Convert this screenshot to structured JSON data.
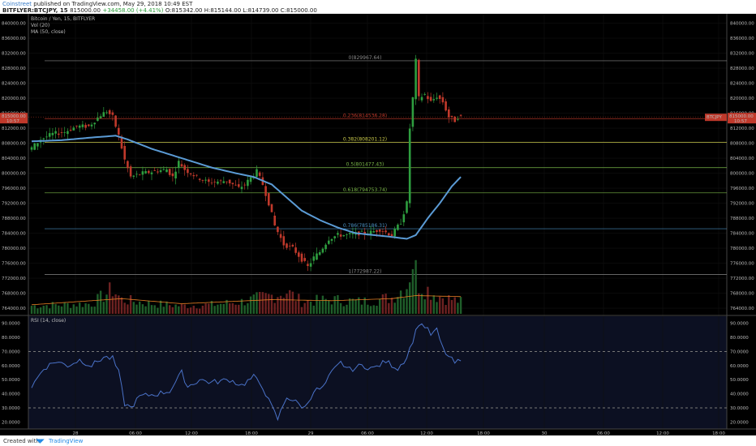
{
  "header": {
    "author": "Coinstreet",
    "published": " published on TradingView.com, May 29, 2018 10:49 EST",
    "symbol_line": "BITFLYER:BTCJPY, 15",
    "ohlc_o": "815000.00",
    "change": "+34458.00 (+4.41%)",
    "ohlc_rest": "O:815342.00  H:815144.00  L:814739.00  C:815000.00"
  },
  "footer": {
    "created_with": "Created with",
    "brand": "TradingView"
  },
  "colors": {
    "up": "#2e9e3f",
    "down": "#c0392b",
    "ma": "#5b9bd5",
    "rsi": "#4a72c8",
    "volma": "#e67e22",
    "fib_red": "#c0392b",
    "fib_green": "#7ab648",
    "fib_yellow": "#c9c94a",
    "fib_gray": "#888888",
    "fib_blue": "#4a90c2"
  },
  "chart_data": [
    {
      "type": "candlestick",
      "title": "Bitcoin / Yen, 15, BITFLYER",
      "indicators": [
        "Vol (20)",
        "MA (50, close)"
      ],
      "x_ticks": [
        "28",
        "06:00",
        "12:00",
        "18:00",
        "29",
        "06:00",
        "12:00",
        "18:00",
        "30",
        "06:00",
        "12:00",
        "18:00"
      ],
      "y_ticks": [
        "840000.00",
        "836000.00",
        "832000.00",
        "828000.00",
        "824000.00",
        "820000.00",
        "816000.00",
        "812000.00",
        "808000.00",
        "804000.00",
        "800000.00",
        "796000.00",
        "792000.00",
        "788000.00",
        "784000.00",
        "780000.00",
        "776000.00",
        "772000.00",
        "768000.00",
        "764000.00"
      ],
      "ylim": [
        762500,
        842500
      ],
      "price_label": "815000.00",
      "price_time": "10:57",
      "symbol_tag": "BTCJPY",
      "price_key": [
        [
          0,
          806000
        ],
        [
          4,
          809000
        ],
        [
          8,
          810500
        ],
        [
          12,
          811000
        ],
        [
          16,
          812500
        ],
        [
          20,
          812500
        ],
        [
          24,
          815500
        ],
        [
          26,
          816500
        ],
        [
          28,
          815000
        ],
        [
          30,
          810000
        ],
        [
          32,
          803500
        ],
        [
          34,
          799000
        ],
        [
          38,
          800000
        ],
        [
          42,
          800500
        ],
        [
          46,
          801000
        ],
        [
          48,
          799000
        ],
        [
          50,
          803000
        ],
        [
          52,
          801000
        ],
        [
          56,
          799000
        ],
        [
          60,
          797500
        ],
        [
          66,
          798000
        ],
        [
          70,
          796000
        ],
        [
          72,
          797000
        ],
        [
          76,
          800500
        ],
        [
          78,
          797000
        ],
        [
          80,
          792000
        ],
        [
          82,
          786000
        ],
        [
          85,
          781000
        ],
        [
          88,
          780000
        ],
        [
          91,
          777000
        ],
        [
          93,
          775000
        ],
        [
          95,
          777500
        ],
        [
          97,
          779000
        ],
        [
          100,
          782500
        ],
        [
          103,
          783500
        ],
        [
          106,
          783500
        ],
        [
          110,
          784000
        ],
        [
          113,
          784000
        ],
        [
          117,
          785000
        ],
        [
          121,
          783500
        ],
        [
          124,
          787000
        ],
        [
          126,
          792000
        ],
        [
          127,
          812000
        ],
        [
          128,
          820000
        ],
        [
          129,
          830000
        ],
        [
          130,
          820000
        ],
        [
          132,
          821000
        ],
        [
          134,
          819000
        ],
        [
          136,
          820500
        ],
        [
          138,
          819000
        ],
        [
          140,
          815000
        ],
        [
          142,
          814000
        ],
        [
          143,
          815000
        ]
      ],
      "ma_key": [
        [
          0,
          808500
        ],
        [
          10,
          808800
        ],
        [
          20,
          809500
        ],
        [
          28,
          810000
        ],
        [
          32,
          809000
        ],
        [
          40,
          806500
        ],
        [
          50,
          804000
        ],
        [
          60,
          801500
        ],
        [
          68,
          800000
        ],
        [
          74,
          799000
        ],
        [
          80,
          797000
        ],
        [
          85,
          793500
        ],
        [
          90,
          790000
        ],
        [
          96,
          787500
        ],
        [
          102,
          785500
        ],
        [
          108,
          784000
        ],
        [
          114,
          783500
        ],
        [
          120,
          783000
        ],
        [
          125,
          782500
        ],
        [
          128,
          783500
        ],
        [
          132,
          788000
        ],
        [
          136,
          792000
        ],
        [
          140,
          796500
        ],
        [
          143,
          799000
        ]
      ],
      "volume_key": [
        [
          0,
          400
        ],
        [
          20,
          500
        ],
        [
          27,
          1200
        ],
        [
          30,
          700
        ],
        [
          40,
          500
        ],
        [
          50,
          400
        ],
        [
          60,
          450
        ],
        [
          70,
          600
        ],
        [
          80,
          900
        ],
        [
          85,
          1100
        ],
        [
          90,
          600
        ],
        [
          100,
          700
        ],
        [
          110,
          600
        ],
        [
          120,
          800
        ],
        [
          125,
          1400
        ],
        [
          127,
          2700
        ],
        [
          129,
          1500
        ],
        [
          135,
          900
        ],
        [
          143,
          600
        ]
      ],
      "vol_ma_key": [
        [
          0,
          450
        ],
        [
          30,
          750
        ],
        [
          50,
          500
        ],
        [
          80,
          700
        ],
        [
          100,
          650
        ],
        [
          120,
          750
        ],
        [
          128,
          900
        ],
        [
          143,
          850
        ]
      ],
      "fibonacci": [
        {
          "label": "0(829967.64)",
          "price": 829967.64,
          "color": "#888888"
        },
        {
          "label": "0.236(814536.28)",
          "price": 814536.28,
          "color": "#c0392b"
        },
        {
          "label": "0.382(808201.12)",
          "price": 808201.12,
          "color": "#c9c94a"
        },
        {
          "label": "0.5(801477.43)",
          "price": 801477.43,
          "color": "#7ab648"
        },
        {
          "label": "0.618(794753.74)",
          "price": 794753.74,
          "color": "#7ab648"
        },
        {
          "label": "0.786(785186.31)",
          "price": 785186.31,
          "color": "#4a90c2"
        },
        {
          "label": "1(772987.22)",
          "price": 772987.22,
          "color": "#888888"
        }
      ]
    },
    {
      "type": "line",
      "title": "RSI (14, close)",
      "y_ticks": [
        "90.0000",
        "80.0000",
        "70.0000",
        "60.0000",
        "50.0000",
        "40.0000",
        "30.0000",
        "20.0000"
      ],
      "ylim": [
        15,
        95
      ],
      "bands": [
        70,
        30
      ],
      "rsi_key": [
        [
          0,
          45
        ],
        [
          4,
          58
        ],
        [
          8,
          63
        ],
        [
          12,
          60
        ],
        [
          16,
          64
        ],
        [
          20,
          60
        ],
        [
          24,
          66
        ],
        [
          27,
          65
        ],
        [
          29,
          55
        ],
        [
          31,
          33
        ],
        [
          33,
          30
        ],
        [
          36,
          38
        ],
        [
          42,
          40
        ],
        [
          46,
          42
        ],
        [
          50,
          55
        ],
        [
          52,
          45
        ],
        [
          56,
          50
        ],
        [
          60,
          48
        ],
        [
          66,
          50
        ],
        [
          70,
          46
        ],
        [
          74,
          52
        ],
        [
          77,
          45
        ],
        [
          79,
          35
        ],
        [
          82,
          22
        ],
        [
          85,
          38
        ],
        [
          88,
          34
        ],
        [
          91,
          30
        ],
        [
          94,
          42
        ],
        [
          97,
          44
        ],
        [
          100,
          55
        ],
        [
          103,
          62
        ],
        [
          106,
          57
        ],
        [
          110,
          60
        ],
        [
          114,
          58
        ],
        [
          118,
          63
        ],
        [
          122,
          58
        ],
        [
          125,
          66
        ],
        [
          127,
          78
        ],
        [
          129,
          90
        ],
        [
          131,
          88
        ],
        [
          133,
          82
        ],
        [
          135,
          85
        ],
        [
          137,
          72
        ],
        [
          139,
          66
        ],
        [
          141,
          62
        ],
        [
          143,
          63
        ]
      ]
    }
  ]
}
